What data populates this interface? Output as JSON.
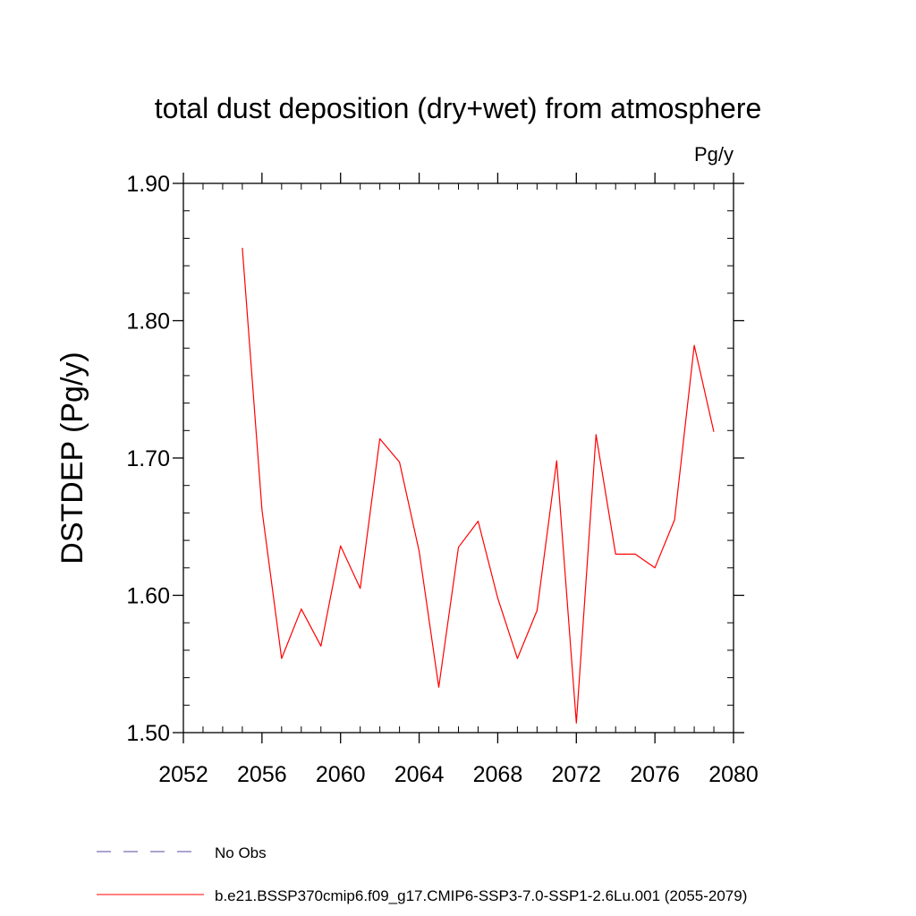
{
  "chart_data": {
    "type": "line",
    "title": "total dust deposition (dry+wet) from atmosphere",
    "units": "Pg/y",
    "ylabel": "DSTDEP  (Pg/y)",
    "xlabel": "",
    "xlim": [
      2052,
      2080
    ],
    "ylim": [
      1.5,
      1.9
    ],
    "x_ticks": [
      2052,
      2056,
      2060,
      2064,
      2068,
      2072,
      2076,
      2080
    ],
    "x_tick_labels": [
      "2052",
      "2056",
      "2060",
      "2064",
      "2068",
      "2072",
      "2076",
      "2080"
    ],
    "y_ticks": [
      1.5,
      1.6,
      1.7,
      1.8,
      1.9
    ],
    "y_tick_labels": [
      "1.50",
      "1.60",
      "1.70",
      "1.80",
      "1.90"
    ],
    "grid": false,
    "legend_position": "bottom",
    "series": [
      {
        "name": "b.e21.BSSP370cmip6.f09_g17.CMIP6-SSP3-7.0-SSP1-2.6Lu.001 (2055-2079)",
        "color": "#ff0000",
        "style": "solid",
        "x": [
          2055,
          2056,
          2057,
          2058,
          2059,
          2060,
          2061,
          2062,
          2063,
          2064,
          2065,
          2066,
          2067,
          2068,
          2069,
          2070,
          2071,
          2072,
          2073,
          2074,
          2075,
          2076,
          2077,
          2078,
          2079
        ],
        "y": [
          1.853,
          1.662,
          1.554,
          1.59,
          1.563,
          1.636,
          1.605,
          1.714,
          1.697,
          1.632,
          1.533,
          1.635,
          1.654,
          1.598,
          1.554,
          1.589,
          1.698,
          1.507,
          1.717,
          1.63,
          1.63,
          1.62,
          1.655,
          1.782,
          1.719
        ]
      }
    ],
    "legend": [
      {
        "label": "No Obs",
        "color": "#5a4aa0",
        "style": "dashed"
      },
      {
        "label": "b.e21.BSSP370cmip6.f09_g17.CMIP6-SSP3-7.0-SSP1-2.6Lu.001 (2055-2079)",
        "color": "#ff0000",
        "style": "solid"
      }
    ]
  }
}
